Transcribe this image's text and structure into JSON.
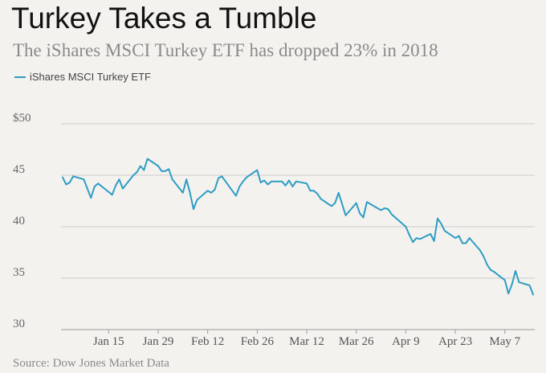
{
  "header": {
    "title": "Turkey Takes a Tumble",
    "subtitle": "The iShares MSCI Turkey ETF has dropped 23% in 2018"
  },
  "legend": {
    "label": "iShares MSCI Turkey ETF"
  },
  "footer": {
    "source": "Source: Dow Jones Market Data"
  },
  "colors": {
    "line": "#2e9dc4",
    "grid": "#cccccc",
    "background": "#f4f2ee"
  },
  "chart_data": {
    "type": "line",
    "title": "Turkey Takes a Tumble",
    "subtitle": "The iShares MSCI Turkey ETF has dropped 23% in 2018",
    "ylim": [
      30,
      50
    ],
    "y_ticks": [
      30,
      35,
      40,
      45,
      50
    ],
    "y_tick_labels": [
      "30",
      "35",
      "40",
      "45",
      "$50"
    ],
    "x_ticks": [
      {
        "date": "2018-01-15",
        "label": "Jan 15"
      },
      {
        "date": "2018-01-29",
        "label": "Jan 29"
      },
      {
        "date": "2018-02-12",
        "label": "Feb 12"
      },
      {
        "date": "2018-02-26",
        "label": "Feb 26"
      },
      {
        "date": "2018-03-12",
        "label": "Mar 12"
      },
      {
        "date": "2018-03-26",
        "label": "Mar 26"
      },
      {
        "date": "2018-04-09",
        "label": "Apr 9"
      },
      {
        "date": "2018-04-23",
        "label": "Apr 23"
      },
      {
        "date": "2018-05-07",
        "label": "May 7"
      }
    ],
    "grid": "horizontal",
    "legend_position": "top-left",
    "series": [
      {
        "name": "iShares MSCI Turkey ETF",
        "points": [
          [
            "2018-01-02",
            44.8
          ],
          [
            "2018-01-03",
            44.1
          ],
          [
            "2018-01-04",
            44.3
          ],
          [
            "2018-01-05",
            44.9
          ],
          [
            "2018-01-08",
            44.6
          ],
          [
            "2018-01-09",
            43.7
          ],
          [
            "2018-01-10",
            42.8
          ],
          [
            "2018-01-11",
            43.9
          ],
          [
            "2018-01-12",
            44.2
          ],
          [
            "2018-01-16",
            43.1
          ],
          [
            "2018-01-17",
            44.0
          ],
          [
            "2018-01-18",
            44.6
          ],
          [
            "2018-01-19",
            43.7
          ],
          [
            "2018-01-22",
            45.0
          ],
          [
            "2018-01-23",
            45.3
          ],
          [
            "2018-01-24",
            45.9
          ],
          [
            "2018-01-25",
            45.5
          ],
          [
            "2018-01-26",
            46.6
          ],
          [
            "2018-01-29",
            45.9
          ],
          [
            "2018-01-30",
            45.4
          ],
          [
            "2018-01-31",
            45.4
          ],
          [
            "2018-02-01",
            45.6
          ],
          [
            "2018-02-02",
            44.6
          ],
          [
            "2018-02-05",
            43.3
          ],
          [
            "2018-02-06",
            44.6
          ],
          [
            "2018-02-07",
            43.3
          ],
          [
            "2018-02-08",
            41.7
          ],
          [
            "2018-02-09",
            42.6
          ],
          [
            "2018-02-12",
            43.5
          ],
          [
            "2018-02-13",
            43.3
          ],
          [
            "2018-02-14",
            43.6
          ],
          [
            "2018-02-15",
            44.7
          ],
          [
            "2018-02-16",
            44.9
          ],
          [
            "2018-02-20",
            43.0
          ],
          [
            "2018-02-21",
            43.9
          ],
          [
            "2018-02-22",
            44.4
          ],
          [
            "2018-02-23",
            44.8
          ],
          [
            "2018-02-26",
            45.5
          ],
          [
            "2018-02-27",
            44.3
          ],
          [
            "2018-02-28",
            44.5
          ],
          [
            "2018-03-01",
            44.1
          ],
          [
            "2018-03-02",
            44.4
          ],
          [
            "2018-03-05",
            44.4
          ],
          [
            "2018-03-06",
            44.0
          ],
          [
            "2018-03-07",
            44.5
          ],
          [
            "2018-03-08",
            43.9
          ],
          [
            "2018-03-09",
            44.4
          ],
          [
            "2018-03-12",
            44.2
          ],
          [
            "2018-03-13",
            43.5
          ],
          [
            "2018-03-14",
            43.5
          ],
          [
            "2018-03-15",
            43.2
          ],
          [
            "2018-03-16",
            42.7
          ],
          [
            "2018-03-19",
            42.0
          ],
          [
            "2018-03-20",
            42.3
          ],
          [
            "2018-03-21",
            43.3
          ],
          [
            "2018-03-22",
            42.2
          ],
          [
            "2018-03-23",
            41.1
          ],
          [
            "2018-03-26",
            42.3
          ],
          [
            "2018-03-27",
            41.3
          ],
          [
            "2018-03-28",
            40.9
          ],
          [
            "2018-03-29",
            42.4
          ],
          [
            "2018-04-02",
            41.6
          ],
          [
            "2018-04-03",
            41.8
          ],
          [
            "2018-04-04",
            41.7
          ],
          [
            "2018-04-05",
            41.2
          ],
          [
            "2018-04-06",
            40.9
          ],
          [
            "2018-04-09",
            40.0
          ],
          [
            "2018-04-10",
            39.2
          ],
          [
            "2018-04-11",
            38.5
          ],
          [
            "2018-04-12",
            38.9
          ],
          [
            "2018-04-13",
            38.8
          ],
          [
            "2018-04-16",
            39.3
          ],
          [
            "2018-04-17",
            38.6
          ],
          [
            "2018-04-18",
            40.8
          ],
          [
            "2018-04-19",
            40.3
          ],
          [
            "2018-04-20",
            39.6
          ],
          [
            "2018-04-23",
            38.9
          ],
          [
            "2018-04-24",
            39.1
          ],
          [
            "2018-04-25",
            38.4
          ],
          [
            "2018-04-26",
            38.4
          ],
          [
            "2018-04-27",
            38.9
          ],
          [
            "2018-04-30",
            37.7
          ],
          [
            "2018-05-01",
            37.1
          ],
          [
            "2018-05-02",
            36.3
          ],
          [
            "2018-05-03",
            35.8
          ],
          [
            "2018-05-04",
            35.6
          ],
          [
            "2018-05-07",
            34.8
          ],
          [
            "2018-05-08",
            33.5
          ],
          [
            "2018-05-09",
            34.4
          ],
          [
            "2018-05-10",
            35.7
          ],
          [
            "2018-05-11",
            34.6
          ],
          [
            "2018-05-14",
            34.3
          ],
          [
            "2018-05-15",
            33.4
          ]
        ]
      }
    ]
  }
}
